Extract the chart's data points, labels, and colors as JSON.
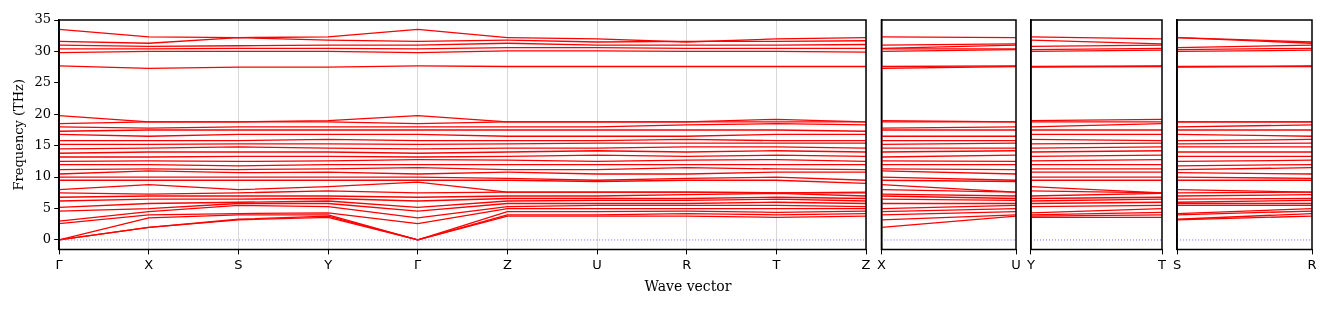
{
  "chart_data": [
    {
      "type": "line",
      "ylabel": "Frequency (THz)",
      "xlabel": "Wave vector",
      "categories": [
        "Γ",
        "X",
        "S",
        "Y",
        "Γ",
        "Z",
        "U",
        "R",
        "T",
        "Z"
      ],
      "ylim": [
        -1.5,
        35
      ],
      "yticks": [
        0,
        5,
        10,
        15,
        20,
        25,
        30,
        35
      ],
      "grid": "x",
      "legend": false,
      "ref_lines": [
        {
          "axis": "y",
          "value": 0,
          "color": "#6f6fff",
          "line_style": "dotted"
        }
      ],
      "series": [
        {
          "color": "#ff0000",
          "values": [
            0,
            2,
            3.2,
            3.6,
            0,
            3.8,
            3.8,
            3.8,
            3.6,
            3.8
          ]
        },
        {
          "color": "#ff0000",
          "values": [
            0,
            2,
            3.3,
            3.8,
            0,
            4.0,
            4.0,
            4.2,
            4.0,
            4.2
          ]
        },
        {
          "color": "#ff0000",
          "values": [
            0,
            3.5,
            4,
            4,
            0,
            4.5,
            4.5,
            4.6,
            4.4,
            4.6
          ]
        },
        {
          "color": "#ff0000",
          "values": [
            2.6,
            4,
            4.2,
            4.3,
            2.6,
            5,
            5,
            5,
            5,
            5
          ]
        },
        {
          "color": "#ff0000",
          "values": [
            3.0,
            4.5,
            5.5,
            5.3,
            3.5,
            5.3,
            5.5,
            5.5,
            5.5,
            5.3
          ]
        },
        {
          "color": "#ff0000",
          "values": [
            4.6,
            5,
            5.8,
            5.8,
            4.6,
            5.8,
            5.8,
            5.8,
            6,
            5.8
          ]
        },
        {
          "color": "#ff0000",
          "values": [
            5.2,
            5.8,
            6.0,
            6.2,
            5.2,
            6.2,
            6.3,
            6.3,
            6.5,
            6.2
          ]
        },
        {
          "color": "#ff0000",
          "values": [
            6.2,
            6.5,
            6.5,
            6.6,
            6.2,
            6.6,
            6.6,
            6.6,
            6.8,
            6.6
          ]
        },
        {
          "color": "#ff0000",
          "values": [
            6.8,
            7,
            7,
            7,
            6.8,
            7,
            7,
            7.2,
            7.4,
            7
          ]
        },
        {
          "color": "#ff0000",
          "values": [
            7.5,
            7.3,
            7.5,
            7.8,
            7.5,
            7.6,
            7.6,
            7.6,
            7.5,
            7.6
          ]
        },
        {
          "color": "#ff0000",
          "values": [
            8.0,
            8.8,
            8.0,
            8.5,
            9.2,
            7.6,
            7.6,
            7.6,
            7.5,
            7.5
          ]
        },
        {
          "color": "#ff0000",
          "values": [
            9.5,
            9.5,
            9.5,
            9.5,
            9.5,
            9.5,
            9.3,
            9.5,
            9.5,
            9.0
          ]
        },
        {
          "color": "#ff0000",
          "values": [
            10,
            10,
            10,
            10,
            10,
            9.8,
            9.5,
            9.8,
            10,
            9.5
          ]
        },
        {
          "color": "#ff0000",
          "values": [
            10.5,
            11,
            10.7,
            10.8,
            10.5,
            10.8,
            10.5,
            10.5,
            10.8,
            10.8
          ]
        },
        {
          "color": "#ff0000",
          "values": [
            11.2,
            11.3,
            11.2,
            11.3,
            11.5,
            11.2,
            11.2,
            11.5,
            11.3,
            11.2
          ]
        },
        {
          "color": "#ff0000",
          "values": [
            12,
            12,
            11.8,
            12,
            12,
            12,
            12,
            12,
            12,
            12
          ]
        },
        {
          "color": "#ff0000",
          "values": [
            12.5,
            12.6,
            12.5,
            12.6,
            12.8,
            12.7,
            12.5,
            12.7,
            12.8,
            12.5
          ]
        },
        {
          "color": "#ff0000",
          "values": [
            13.2,
            13.2,
            13.3,
            13.3,
            13.2,
            13.3,
            13.5,
            13.3,
            13.5,
            13.3
          ]
        },
        {
          "color": "#ff0000",
          "values": [
            13.8,
            14,
            14,
            14,
            13.8,
            14,
            14.2,
            14,
            14.2,
            14
          ]
        },
        {
          "color": "#ff0000",
          "values": [
            14.5,
            14.6,
            14.8,
            14.6,
            14.5,
            14.6,
            14.6,
            14.8,
            14.8,
            14.6
          ]
        },
        {
          "color": "#ff0000",
          "values": [
            15.2,
            15.2,
            15.3,
            15.3,
            15.2,
            15.3,
            15.4,
            15.4,
            15.4,
            15.4
          ]
        },
        {
          "color": "#ff0000",
          "values": [
            15.8,
            15.8,
            15.8,
            16,
            15.8,
            15.8,
            15.8,
            16,
            15.8,
            15.8
          ]
        },
        {
          "color": "#ff0000",
          "values": [
            16.8,
            16.5,
            16.8,
            16.8,
            16.8,
            16.5,
            16.5,
            16.5,
            16.8,
            16.8
          ]
        },
        {
          "color": "#ff0000",
          "values": [
            17.3,
            17.5,
            17.5,
            17.5,
            17.5,
            17.5,
            17.5,
            17.5,
            17.5,
            17.3
          ]
        },
        {
          "color": "#ff0000",
          "values": [
            18,
            17.8,
            18,
            18,
            18,
            18,
            18,
            18.3,
            18.5,
            18.3
          ]
        },
        {
          "color": "#ff0000",
          "values": [
            18.5,
            18.8,
            18.8,
            18.8,
            18.5,
            18.8,
            18.8,
            18.8,
            18.8,
            18.8
          ]
        },
        {
          "color": "#ff0000",
          "values": [
            19.8,
            18.8,
            18.8,
            19,
            19.8,
            18.8,
            18.8,
            18.8,
            19.2,
            18.8
          ]
        },
        {
          "color": "#ff0000",
          "values": [
            27.7,
            27.3,
            27.5,
            27.5,
            27.7,
            27.6,
            27.6,
            27.6,
            27.6,
            27.6
          ]
        },
        {
          "color": "#ff0000",
          "values": [
            29.8,
            30,
            30,
            30,
            29.8,
            30.1,
            30.1,
            30,
            30,
            29.9
          ]
        },
        {
          "color": "#ff0000",
          "values": [
            30.4,
            30.4,
            30.5,
            30.5,
            30.4,
            30.6,
            30.6,
            30.5,
            30.5,
            30.5
          ]
        },
        {
          "color": "#ff0000",
          "values": [
            31.0,
            30.8,
            30.9,
            31.0,
            31.0,
            31.3,
            31,
            31,
            31,
            31.1
          ]
        },
        {
          "color": "#ff0000",
          "values": [
            31.6,
            31.3,
            32.2,
            31.8,
            31.6,
            31.8,
            31.5,
            31.6,
            31.6,
            31.7
          ]
        },
        {
          "color": "#ff0000",
          "values": [
            33.5,
            32.3,
            32.2,
            32.3,
            33.5,
            32.2,
            32,
            31.5,
            32,
            32.2
          ]
        }
      ]
    },
    {
      "type": "line",
      "categories": [
        "X",
        "U"
      ],
      "ylim": [
        -1.5,
        35
      ],
      "yticks": [
        0,
        5,
        10,
        15,
        20,
        25,
        30,
        35
      ],
      "tick_labels": "x",
      "legend": false,
      "ref_lines": [
        {
          "axis": "y",
          "value": 0,
          "color": "#6f6fff",
          "line_style": "dotted"
        }
      ],
      "series": [
        {
          "color": "#ff0000",
          "values": [
            2,
            3.8
          ]
        },
        {
          "color": "#ff0000",
          "values": [
            3.2,
            4
          ]
        },
        {
          "color": "#ff0000",
          "values": [
            4,
            4.5
          ]
        },
        {
          "color": "#ff0000",
          "values": [
            4.5,
            5
          ]
        },
        {
          "color": "#ff0000",
          "values": [
            5,
            5.5
          ]
        },
        {
          "color": "#ff0000",
          "values": [
            5.8,
            5.8
          ]
        },
        {
          "color": "#ff0000",
          "values": [
            6.5,
            6.3
          ]
        },
        {
          "color": "#ff0000",
          "values": [
            7,
            6.6
          ]
        },
        {
          "color": "#ff0000",
          "values": [
            7.3,
            7
          ]
        },
        {
          "color": "#ff0000",
          "values": [
            8,
            7.6
          ]
        },
        {
          "color": "#ff0000",
          "values": [
            8.8,
            7.6
          ]
        },
        {
          "color": "#ff0000",
          "values": [
            9.5,
            9.3
          ]
        },
        {
          "color": "#ff0000",
          "values": [
            10,
            9.5
          ]
        },
        {
          "color": "#ff0000",
          "values": [
            11,
            10.5
          ]
        },
        {
          "color": "#ff0000",
          "values": [
            11.3,
            11.2
          ]
        },
        {
          "color": "#ff0000",
          "values": [
            12,
            12
          ]
        },
        {
          "color": "#ff0000",
          "values": [
            12.6,
            12.5
          ]
        },
        {
          "color": "#ff0000",
          "values": [
            13.2,
            13.5
          ]
        },
        {
          "color": "#ff0000",
          "values": [
            14,
            14.2
          ]
        },
        {
          "color": "#ff0000",
          "values": [
            14.6,
            14.6
          ]
        },
        {
          "color": "#ff0000",
          "values": [
            15.2,
            15.4
          ]
        },
        {
          "color": "#ff0000",
          "values": [
            15.8,
            15.8
          ]
        },
        {
          "color": "#ff0000",
          "values": [
            16.5,
            16.5
          ]
        },
        {
          "color": "#ff0000",
          "values": [
            17.5,
            17.5
          ]
        },
        {
          "color": "#ff0000",
          "values": [
            17.8,
            18
          ]
        },
        {
          "color": "#ff0000",
          "values": [
            18.8,
            18.8
          ]
        },
        {
          "color": "#ff0000",
          "values": [
            19,
            18.8
          ]
        },
        {
          "color": "#ff0000",
          "values": [
            27.3,
            27.6
          ]
        },
        {
          "color": "#ff0000",
          "values": [
            27.6,
            27.7
          ]
        },
        {
          "color": "#ff0000",
          "values": [
            30,
            30.3
          ]
        },
        {
          "color": "#ff0000",
          "values": [
            30.4,
            30.4
          ]
        },
        {
          "color": "#ff0000",
          "values": [
            30.5,
            31
          ]
        },
        {
          "color": "#ff0000",
          "values": [
            31,
            31.2
          ]
        },
        {
          "color": "#ff0000",
          "values": [
            32.3,
            32.2
          ]
        }
      ]
    },
    {
      "type": "line",
      "categories": [
        "Y",
        "T"
      ],
      "ylim": [
        -1.5,
        35
      ],
      "yticks": [
        0,
        5,
        10,
        15,
        20,
        25,
        30,
        35
      ],
      "tick_labels": "x",
      "legend": false,
      "ref_lines": [
        {
          "axis": "y",
          "value": 0,
          "color": "#6f6fff",
          "line_style": "dotted"
        }
      ],
      "series": [
        {
          "color": "#ff0000",
          "values": [
            3.6,
            3.6
          ]
        },
        {
          "color": "#ff0000",
          "values": [
            3.8,
            4
          ]
        },
        {
          "color": "#ff0000",
          "values": [
            4,
            4.4
          ]
        },
        {
          "color": "#ff0000",
          "values": [
            4.3,
            5
          ]
        },
        {
          "color": "#ff0000",
          "values": [
            5.3,
            5.5
          ]
        },
        {
          "color": "#ff0000",
          "values": [
            5.8,
            6
          ]
        },
        {
          "color": "#ff0000",
          "values": [
            6.2,
            6.5
          ]
        },
        {
          "color": "#ff0000",
          "values": [
            6.6,
            6.8
          ]
        },
        {
          "color": "#ff0000",
          "values": [
            7,
            7.4
          ]
        },
        {
          "color": "#ff0000",
          "values": [
            7.8,
            7.5
          ]
        },
        {
          "color": "#ff0000",
          "values": [
            8.5,
            7.5
          ]
        },
        {
          "color": "#ff0000",
          "values": [
            9.5,
            9.5
          ]
        },
        {
          "color": "#ff0000",
          "values": [
            10,
            10
          ]
        },
        {
          "color": "#ff0000",
          "values": [
            10.8,
            10.8
          ]
        },
        {
          "color": "#ff0000",
          "values": [
            11.3,
            11.3
          ]
        },
        {
          "color": "#ff0000",
          "values": [
            12,
            12
          ]
        },
        {
          "color": "#ff0000",
          "values": [
            12.6,
            12.8
          ]
        },
        {
          "color": "#ff0000",
          "values": [
            13.3,
            13.5
          ]
        },
        {
          "color": "#ff0000",
          "values": [
            14,
            14.2
          ]
        },
        {
          "color": "#ff0000",
          "values": [
            14.6,
            14.8
          ]
        },
        {
          "color": "#ff0000",
          "values": [
            15.3,
            15.4
          ]
        },
        {
          "color": "#ff0000",
          "values": [
            16,
            15.8
          ]
        },
        {
          "color": "#ff0000",
          "values": [
            16.8,
            16.8
          ]
        },
        {
          "color": "#ff0000",
          "values": [
            17.5,
            17.5
          ]
        },
        {
          "color": "#ff0000",
          "values": [
            18,
            18.5
          ]
        },
        {
          "color": "#ff0000",
          "values": [
            18.8,
            18.8
          ]
        },
        {
          "color": "#ff0000",
          "values": [
            19,
            19.2
          ]
        },
        {
          "color": "#ff0000",
          "values": [
            27.5,
            27.6
          ]
        },
        {
          "color": "#ff0000",
          "values": [
            27.6,
            27.7
          ]
        },
        {
          "color": "#ff0000",
          "values": [
            30,
            30.2
          ]
        },
        {
          "color": "#ff0000",
          "values": [
            30.3,
            30.5
          ]
        },
        {
          "color": "#ff0000",
          "values": [
            30.8,
            31
          ]
        },
        {
          "color": "#ff0000",
          "values": [
            31.8,
            31.2
          ]
        },
        {
          "color": "#ff0000",
          "values": [
            32.3,
            32
          ]
        }
      ]
    },
    {
      "type": "line",
      "categories": [
        "S",
        "R"
      ],
      "ylim": [
        -1.5,
        35
      ],
      "yticks": [
        0,
        5,
        10,
        15,
        20,
        25,
        30,
        35
      ],
      "tick_labels": "x",
      "legend": false,
      "ref_lines": [
        {
          "axis": "y",
          "value": 0,
          "color": "#6f6fff",
          "line_style": "dotted"
        }
      ],
      "series": [
        {
          "color": "#ff0000",
          "values": [
            3.2,
            3.8
          ]
        },
        {
          "color": "#ff0000",
          "values": [
            3.3,
            4.2
          ]
        },
        {
          "color": "#ff0000",
          "values": [
            4,
            4.6
          ]
        },
        {
          "color": "#ff0000",
          "values": [
            4.2,
            5
          ]
        },
        {
          "color": "#ff0000",
          "values": [
            5.5,
            5.5
          ]
        },
        {
          "color": "#ff0000",
          "values": [
            5.8,
            5.8
          ]
        },
        {
          "color": "#ff0000",
          "values": [
            6,
            6.3
          ]
        },
        {
          "color": "#ff0000",
          "values": [
            6.5,
            6.6
          ]
        },
        {
          "color": "#ff0000",
          "values": [
            7,
            7.2
          ]
        },
        {
          "color": "#ff0000",
          "values": [
            7.5,
            7.6
          ]
        },
        {
          "color": "#ff0000",
          "values": [
            8,
            7.6
          ]
        },
        {
          "color": "#ff0000",
          "values": [
            9.5,
            9.5
          ]
        },
        {
          "color": "#ff0000",
          "values": [
            10,
            9.8
          ]
        },
        {
          "color": "#ff0000",
          "values": [
            10.7,
            10.5
          ]
        },
        {
          "color": "#ff0000",
          "values": [
            11.2,
            11.5
          ]
        },
        {
          "color": "#ff0000",
          "values": [
            11.8,
            12
          ]
        },
        {
          "color": "#ff0000",
          "values": [
            12.5,
            12.7
          ]
        },
        {
          "color": "#ff0000",
          "values": [
            13.3,
            13.3
          ]
        },
        {
          "color": "#ff0000",
          "values": [
            14,
            14
          ]
        },
        {
          "color": "#ff0000",
          "values": [
            14.8,
            14.8
          ]
        },
        {
          "color": "#ff0000",
          "values": [
            15.3,
            15.4
          ]
        },
        {
          "color": "#ff0000",
          "values": [
            15.8,
            16
          ]
        },
        {
          "color": "#ff0000",
          "values": [
            16.8,
            16.5
          ]
        },
        {
          "color": "#ff0000",
          "values": [
            17.5,
            17.5
          ]
        },
        {
          "color": "#ff0000",
          "values": [
            18,
            18.3
          ]
        },
        {
          "color": "#ff0000",
          "values": [
            18.8,
            18.8
          ]
        },
        {
          "color": "#ff0000",
          "values": [
            18.8,
            18.8
          ]
        },
        {
          "color": "#ff0000",
          "values": [
            27.5,
            27.6
          ]
        },
        {
          "color": "#ff0000",
          "values": [
            27.6,
            27.7
          ]
        },
        {
          "color": "#ff0000",
          "values": [
            30,
            30.2
          ]
        },
        {
          "color": "#ff0000",
          "values": [
            30.3,
            30.5
          ]
        },
        {
          "color": "#ff0000",
          "values": [
            30.6,
            31
          ]
        },
        {
          "color": "#ff0000",
          "values": [
            32.2,
            31.3
          ]
        },
        {
          "color": "#ff0000",
          "values": [
            32.2,
            31.5
          ]
        }
      ]
    }
  ]
}
